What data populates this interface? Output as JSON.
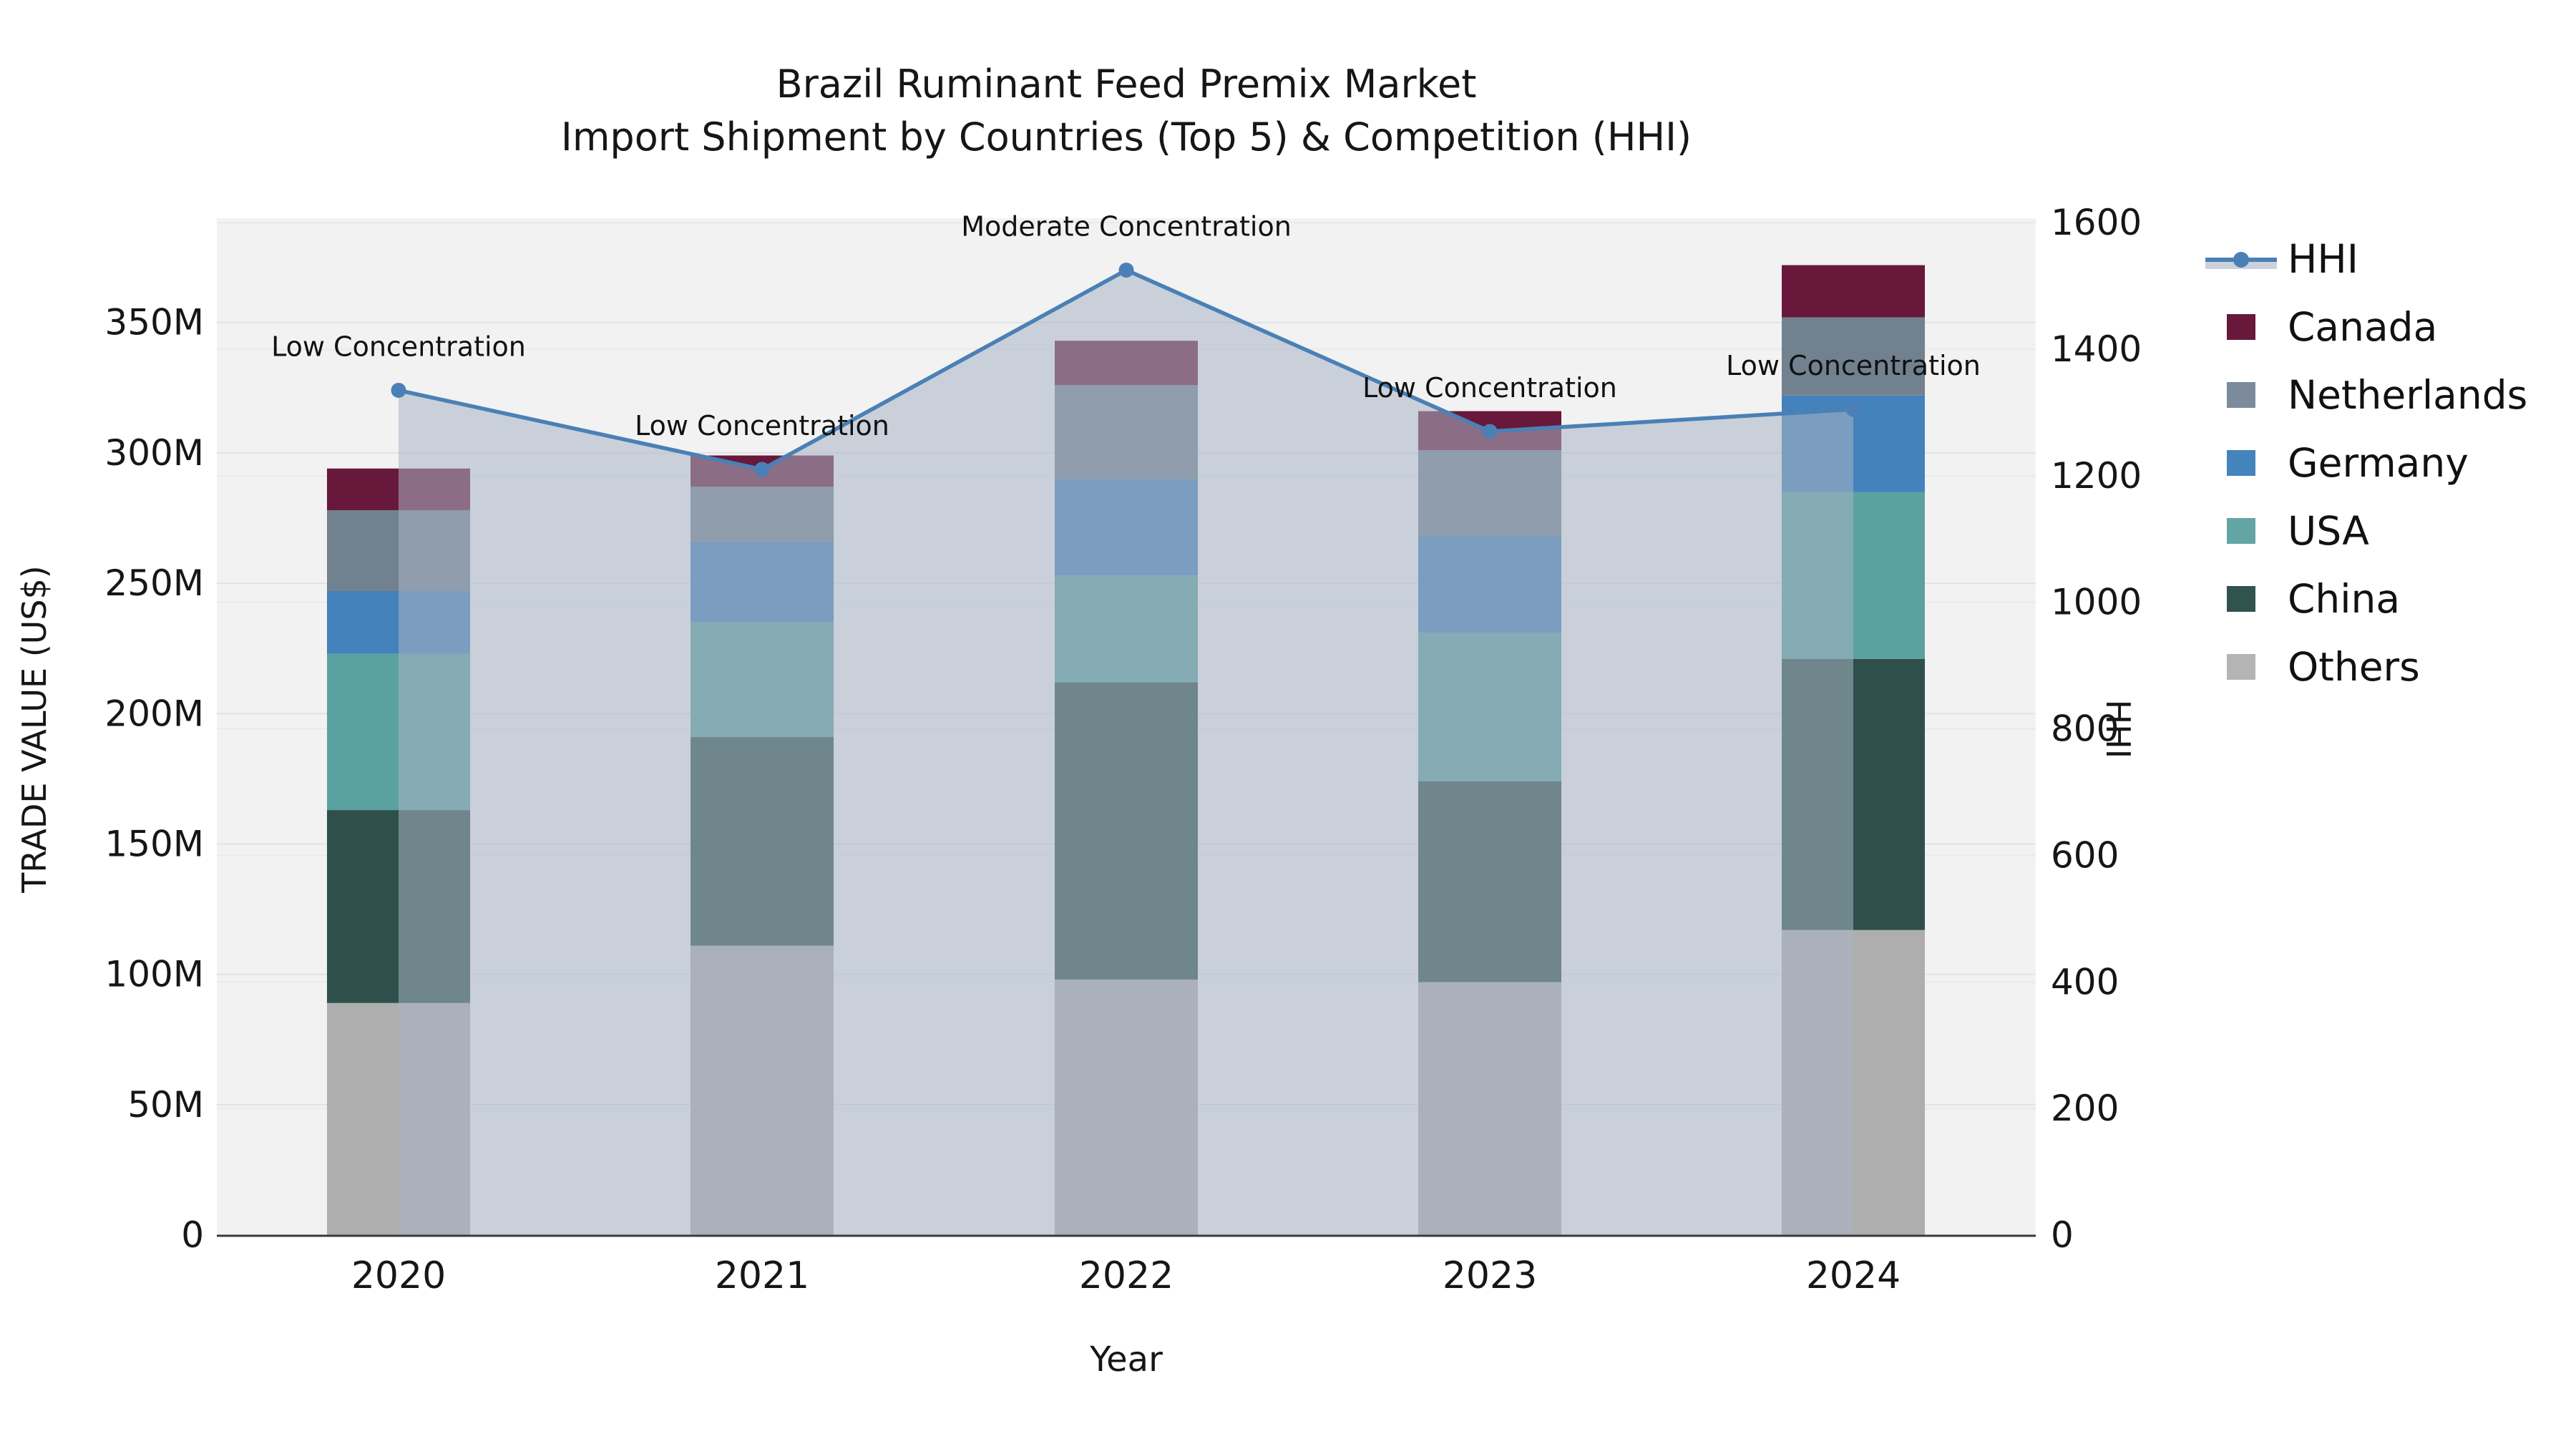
{
  "title": {
    "line1": "Brazil Ruminant Feed Premix Market",
    "line2": "Import Shipment by Countries (Top 5) & Competition (HHI)"
  },
  "axes": {
    "x_title": "Year",
    "left_title": "TRADE VALUE (US$)",
    "right_title": "HHI",
    "left_ticks": [
      {
        "label": "0",
        "value": 0
      },
      {
        "label": "50M",
        "value": 50
      },
      {
        "label": "100M",
        "value": 100
      },
      {
        "label": "150M",
        "value": 150
      },
      {
        "label": "200M",
        "value": 200
      },
      {
        "label": "250M",
        "value": 250
      },
      {
        "label": "300M",
        "value": 300
      },
      {
        "label": "350M",
        "value": 350
      }
    ],
    "right_ticks": [
      {
        "label": "0",
        "value": 0
      },
      {
        "label": "200",
        "value": 200
      },
      {
        "label": "400",
        "value": 400
      },
      {
        "label": "600",
        "value": 600
      },
      {
        "label": "800",
        "value": 800
      },
      {
        "label": "1000",
        "value": 1000
      },
      {
        "label": "1200",
        "value": 1200
      },
      {
        "label": "1400",
        "value": 1400
      },
      {
        "label": "1600",
        "value": 1600
      }
    ]
  },
  "chart_data": {
    "type": "combo-stacked-bar-line",
    "title": "Brazil Ruminant Feed Premix Market — Import Shipment by Countries (Top 5) & Competition (HHI)",
    "categories": [
      "2020",
      "2021",
      "2022",
      "2023",
      "2024"
    ],
    "bar_unit": "million US$ (trade value)",
    "bar_stack_order_bottom_to_top": [
      "Others",
      "China",
      "USA",
      "Germany",
      "Netherlands",
      "Canada"
    ],
    "series": [
      {
        "name": "Others",
        "color": "#aeaeae",
        "values": [
          89,
          111,
          98,
          97,
          117
        ]
      },
      {
        "name": "China",
        "color": "#2e4f4a",
        "values": [
          74,
          80,
          114,
          77,
          104
        ]
      },
      {
        "name": "USA",
        "color": "#5ca1a2",
        "values": [
          60,
          44,
          41,
          57,
          64
        ]
      },
      {
        "name": "Germany",
        "color": "#4382bb",
        "values": [
          24,
          31,
          37,
          37,
          37
        ]
      },
      {
        "name": "Netherlands",
        "color": "#71818f",
        "values": [
          31,
          21,
          36,
          33,
          30
        ]
      },
      {
        "name": "Canada",
        "color": "#68183a",
        "values": [
          16,
          12,
          17,
          15,
          20
        ]
      }
    ],
    "bar_totals": [
      294,
      299,
      343,
      316,
      372
    ],
    "line_series": {
      "name": "HHI",
      "color": "#4a80b5",
      "fill_color": "rgba(168,180,197,0.55)",
      "values": [
        1335,
        1210,
        1525,
        1270,
        1305
      ]
    },
    "annotations": [
      {
        "x": "2020",
        "text": "Low Concentration"
      },
      {
        "x": "2021",
        "text": "Low Concentration"
      },
      {
        "x": "2022",
        "text": "Moderate Concentration"
      },
      {
        "x": "2023",
        "text": "Low Concentration"
      },
      {
        "x": "2024",
        "text": "Low Concentration"
      }
    ],
    "xlabel": "Year",
    "ylabel_left": "TRADE VALUE (US$)",
    "ylabel_right": "HHI",
    "left_axis_range_M": [
      0,
      390
    ],
    "right_axis_range": [
      0,
      1600
    ],
    "grid": true,
    "legend_position": "right"
  },
  "legend": {
    "items": [
      {
        "label": "HHI",
        "type": "line",
        "color": "#4a80b5",
        "band_color": "#ccd2dc"
      },
      {
        "label": "Canada",
        "type": "box",
        "color": "#68183a"
      },
      {
        "label": "Netherlands",
        "type": "box",
        "color": "#7b8b9b"
      },
      {
        "label": "Germany",
        "type": "box",
        "color": "#4583bc"
      },
      {
        "label": "USA",
        "type": "box",
        "color": "#63a5a4"
      },
      {
        "label": "China",
        "type": "box",
        "color": "#30534e"
      },
      {
        "label": "Others",
        "type": "box",
        "color": "#b4b4b4"
      }
    ]
  },
  "colors": {
    "plot_bg": "#f2f2f3",
    "grid_left": "#e2e2e4",
    "grid_right": "#eaeaec",
    "axis_line": "#3a3a3a",
    "tick_text": "#161616",
    "annotation_text": "#111111"
  }
}
